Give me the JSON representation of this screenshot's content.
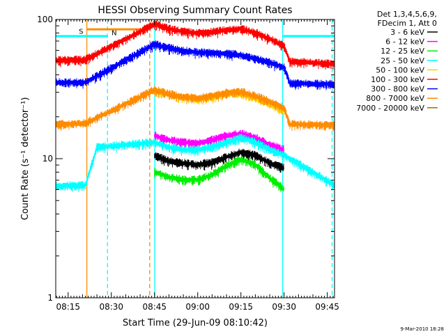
{
  "chart_data": {
    "type": "line",
    "title": "HESSI Observing Summary Count Rates",
    "xlabel": "Start Time (29-Jun-09 08:10:42)",
    "ylabel": "Count Rate (s⁻¹ detector⁻¹)",
    "y_scale": "log",
    "ylim": [
      1,
      100
    ],
    "xlim": [
      "08:10:42",
      "09:47:30"
    ],
    "x_ticks": [
      "08:15",
      "08:30",
      "08:45",
      "09:00",
      "09:15",
      "09:30",
      "09:45"
    ],
    "y_ticks": [
      "1",
      "10",
      "100"
    ],
    "legend_header": [
      "Det 1,3,4,5,6,9,",
      "FDecim 1, Att 0"
    ],
    "legend_position": "right",
    "footer_date": "9-Mar-2010 18:28",
    "grid": false,
    "series": [
      {
        "name": "3 - 6 keV",
        "color": "#000000",
        "x": [
          "08:45:00",
          "08:50:00",
          "08:55:00",
          "09:00:00",
          "09:05:00",
          "09:10:00",
          "09:15:00",
          "09:20:00",
          "09:25:00",
          "09:30:00"
        ],
        "values": [
          10.5,
          9.5,
          9.2,
          9.0,
          9.3,
          10.2,
          11.0,
          10.5,
          9.2,
          8.5
        ]
      },
      {
        "name": "6 - 12 keV",
        "color": "#ff00ff",
        "x": [
          "08:45:00",
          "08:50:00",
          "08:55:00",
          "09:00:00",
          "09:05:00",
          "09:10:00",
          "09:15:00",
          "09:20:00",
          "09:25:00",
          "09:30:00"
        ],
        "values": [
          14.5,
          13.5,
          13.0,
          12.8,
          13.5,
          14.5,
          15.0,
          14.0,
          12.5,
          11.5
        ]
      },
      {
        "name": "12 - 25 keV",
        "color": "#00ee00",
        "x": [
          "08:45:00",
          "08:50:00",
          "08:55:00",
          "09:00:00",
          "09:05:00",
          "09:10:00",
          "09:15:00",
          "09:20:00",
          "09:25:00",
          "09:30:00"
        ],
        "values": [
          8.0,
          7.3,
          7.0,
          7.0,
          7.6,
          8.8,
          9.8,
          9.0,
          7.2,
          6.0
        ]
      },
      {
        "name": "25 - 50 keV",
        "color": "#00ffff",
        "x": [
          "08:10:42",
          "08:21:00",
          "08:25:00",
          "08:45:00",
          "08:50:00",
          "08:55:00",
          "09:00:00",
          "09:05:00",
          "09:10:00",
          "09:15:00",
          "09:20:00",
          "09:25:00",
          "09:30:00",
          "09:47:30"
        ],
        "values": [
          6.3,
          6.4,
          12.0,
          13.0,
          12.0,
          11.5,
          11.5,
          12.0,
          13.0,
          14.0,
          13.0,
          11.5,
          10.5,
          6.4
        ]
      },
      {
        "name": "50 - 100 keV",
        "color": "#ffcc00",
        "x": [
          "08:45:00",
          "08:50:00",
          "08:55:00",
          "09:00:00",
          "09:05:00",
          "09:10:00",
          "09:15:00",
          "09:20:00",
          "09:25:00",
          "09:30:00"
        ],
        "values": [
          30.5,
          28.5,
          27.0,
          26.5,
          27.5,
          29.0,
          29.0,
          27.0,
          24.5,
          22.0
        ]
      },
      {
        "name": "100 - 300 keV",
        "color": "#ff0000",
        "x": [
          "08:10:42",
          "08:21:00",
          "08:45:00",
          "08:50:00",
          "08:55:00",
          "09:00:00",
          "09:05:00",
          "09:10:00",
          "09:15:00",
          "09:20:00",
          "09:25:00",
          "09:30:00",
          "09:32:00",
          "09:47:30"
        ],
        "values": [
          50.5,
          51.0,
          92.0,
          85.0,
          81.0,
          79.0,
          80.5,
          83.5,
          85.0,
          79.5,
          72.0,
          64.0,
          49.5,
          47.5
        ]
      },
      {
        "name": "300 - 800 keV",
        "color": "#0000ff",
        "x": [
          "08:10:42",
          "08:21:00",
          "08:45:00",
          "08:50:00",
          "08:55:00",
          "09:00:00",
          "09:05:00",
          "09:10:00",
          "09:15:00",
          "09:20:00",
          "09:25:00",
          "09:30:00",
          "09:32:00",
          "09:47:30"
        ],
        "values": [
          35.0,
          35.0,
          66.0,
          62.0,
          59.0,
          57.5,
          57.0,
          56.5,
          55.0,
          52.0,
          48.5,
          45.0,
          34.5,
          34.0
        ]
      },
      {
        "name": "800 - 7000 keV",
        "color": "#ff8c00",
        "x": [
          "08:10:42",
          "08:21:00",
          "08:45:00",
          "08:50:00",
          "08:55:00",
          "09:00:00",
          "09:05:00",
          "09:10:00",
          "09:15:00",
          "09:20:00",
          "09:25:00",
          "09:30:00",
          "09:32:00",
          "09:47:30"
        ],
        "values": [
          17.5,
          17.8,
          31.0,
          29.0,
          27.5,
          27.0,
          28.0,
          29.5,
          30.0,
          28.0,
          25.5,
          23.0,
          17.5,
          17.3
        ]
      },
      {
        "name": "7000 - 20000 keV",
        "color": "#9a7000",
        "x": [],
        "values": []
      }
    ],
    "annotations": [
      {
        "text": "S",
        "color": "#ff8c00",
        "x": "08:19:30",
        "y": 79
      },
      {
        "text": "N",
        "color": "#00ffff",
        "x": "08:31:00",
        "y": 77
      }
    ],
    "saa_interval": {
      "label": "S",
      "color": "#ff8c00",
      "start": "08:21:30",
      "end": "08:43:20",
      "level": 85
    },
    "night_intervals": [
      {
        "label": "N",
        "color": "#00ffff",
        "start": "08:10:42",
        "end": "08:28:40",
        "level": 76
      },
      {
        "label": "",
        "color": "#00ffff",
        "start": "09:29:30",
        "end": "09:47:30",
        "level": 76
      }
    ],
    "vertical_markers": [
      {
        "x": "08:21:30",
        "color": "#ff8c00",
        "dash": false
      },
      {
        "x": "08:28:40",
        "color": "#00ffff",
        "dash": true
      },
      {
        "x": "08:43:20",
        "color": "#ff8c00",
        "dash": true
      },
      {
        "x": "08:45:05",
        "color": "#00ffff",
        "dash": false
      },
      {
        "x": "09:29:30",
        "color": "#00ffff",
        "dash": false
      },
      {
        "x": "09:46:40",
        "color": "#00ffff",
        "dash": true
      }
    ]
  }
}
